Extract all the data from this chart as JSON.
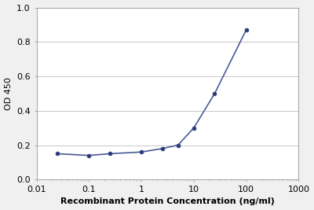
{
  "x": [
    0.025,
    0.1,
    0.25,
    1.0,
    2.5,
    5.0,
    10.0,
    25.0,
    100.0
  ],
  "y": [
    0.15,
    0.14,
    0.15,
    0.16,
    0.18,
    0.2,
    0.3,
    0.5,
    0.87
  ],
  "line_color": "#4a5a9a",
  "marker_color": "#2a3a7a",
  "marker_size": 3.5,
  "line_width": 1.2,
  "xlabel": "Recombinant Protein Concentration (ng/ml)",
  "ylabel": "OD 450",
  "xlim": [
    0.01,
    1000
  ],
  "ylim": [
    0.0,
    1.0
  ],
  "yticks": [
    0.0,
    0.2,
    0.4,
    0.6,
    0.8,
    1.0
  ],
  "xtick_vals": [
    0.01,
    0.1,
    1,
    10,
    100,
    1000
  ],
  "xtick_labels": [
    "0.01",
    "0.1",
    "1",
    "10",
    "100",
    "1000"
  ],
  "grid_color": "#c8c8c8",
  "bg_color": "#ffffff",
  "fig_bg_color": "#f0f0f0",
  "xlabel_fontsize": 8,
  "ylabel_fontsize": 8,
  "tick_fontsize": 8,
  "xlabel_bold": true,
  "ylabel_bold": false,
  "spine_color": "#aaaaaa"
}
